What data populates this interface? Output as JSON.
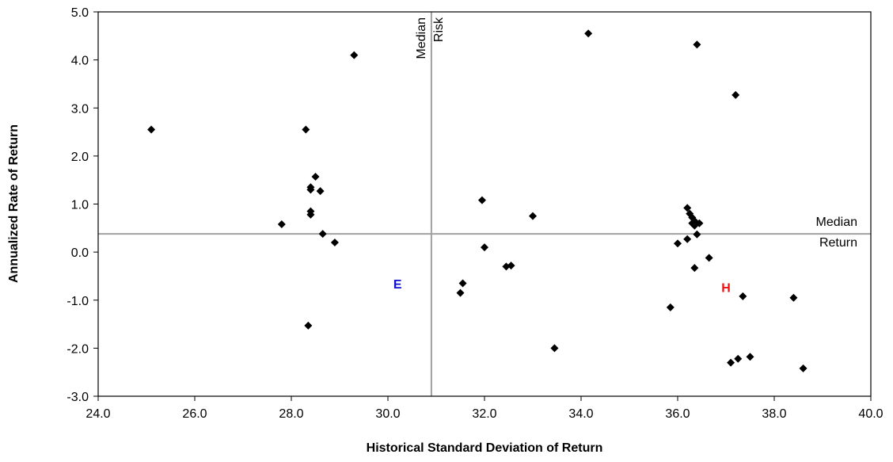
{
  "chart_data": {
    "type": "scatter",
    "x_label": "Historical Standard Deviation of Return",
    "y_label": "Annualized Rate of Return",
    "xlim": [
      24,
      40
    ],
    "xticks": [
      {
        "value": 24,
        "label": "24.0"
      },
      {
        "value": 26,
        "label": "26.0"
      },
      {
        "value": 28,
        "label": "28.0"
      },
      {
        "value": 30,
        "label": "30.0"
      },
      {
        "value": 32,
        "label": "32.0"
      },
      {
        "value": 34,
        "label": "34.0"
      },
      {
        "value": 36,
        "label": "36.0"
      },
      {
        "value": 38,
        "label": "38.0"
      },
      {
        "value": 40,
        "label": "40.0"
      }
    ],
    "ylim": [
      -3,
      5
    ],
    "yticks": [
      {
        "value": -3,
        "label": "-3.0"
      },
      {
        "value": -2,
        "label": "-2.0"
      },
      {
        "value": -1,
        "label": "-1.0"
      },
      {
        "value": 0,
        "label": "0.0"
      },
      {
        "value": 1,
        "label": "1.0"
      },
      {
        "value": 2,
        "label": "2.0"
      },
      {
        "value": 3,
        "label": "3.0"
      },
      {
        "value": 4,
        "label": "4.0"
      },
      {
        "value": 5,
        "label": "5.0"
      }
    ],
    "color": "#000000",
    "x": [
      25.1,
      27.8,
      28.3,
      28.35,
      28.4,
      28.4,
      28.4,
      28.4,
      28.5,
      28.6,
      28.65,
      28.9,
      29.3,
      31.5,
      31.55,
      31.95,
      32.0,
      32.45,
      32.55,
      33.0,
      33.45,
      34.15,
      35.85,
      36.0,
      36.2,
      36.2,
      36.25,
      36.3,
      36.3,
      36.35,
      36.35,
      36.35,
      36.4,
      36.4,
      36.45,
      36.65,
      37.1,
      37.2,
      37.25,
      37.35,
      37.5,
      38.4,
      38.6
    ],
    "y": [
      2.55,
      0.58,
      2.55,
      -1.53,
      1.35,
      1.3,
      0.85,
      0.78,
      1.57,
      1.27,
      0.38,
      0.2,
      4.1,
      -0.85,
      -0.65,
      1.08,
      0.1,
      -0.3,
      -0.28,
      0.75,
      -2.0,
      4.55,
      -1.15,
      0.18,
      0.92,
      0.27,
      0.8,
      0.72,
      0.6,
      0.65,
      -0.33,
      0.55,
      0.37,
      4.32,
      0.6,
      -0.12,
      -2.3,
      3.27,
      -2.22,
      -0.92,
      -2.18,
      -0.95,
      -2.42
    ],
    "reference_lines": [
      {
        "axis": "x",
        "value": 30.9,
        "label": [
          "Median",
          "Risk"
        ],
        "color": "#a0a0a0"
      },
      {
        "axis": "y",
        "value": 0.38,
        "label": [
          "Median",
          "Return"
        ],
        "color": "#a0a0a0"
      }
    ],
    "annotations": [
      {
        "text": "E",
        "x": 30.2,
        "y": -0.66,
        "color": "#1010d0"
      },
      {
        "text": "H",
        "x": 37.0,
        "y": -0.73,
        "color": "#ee1111"
      }
    ]
  }
}
